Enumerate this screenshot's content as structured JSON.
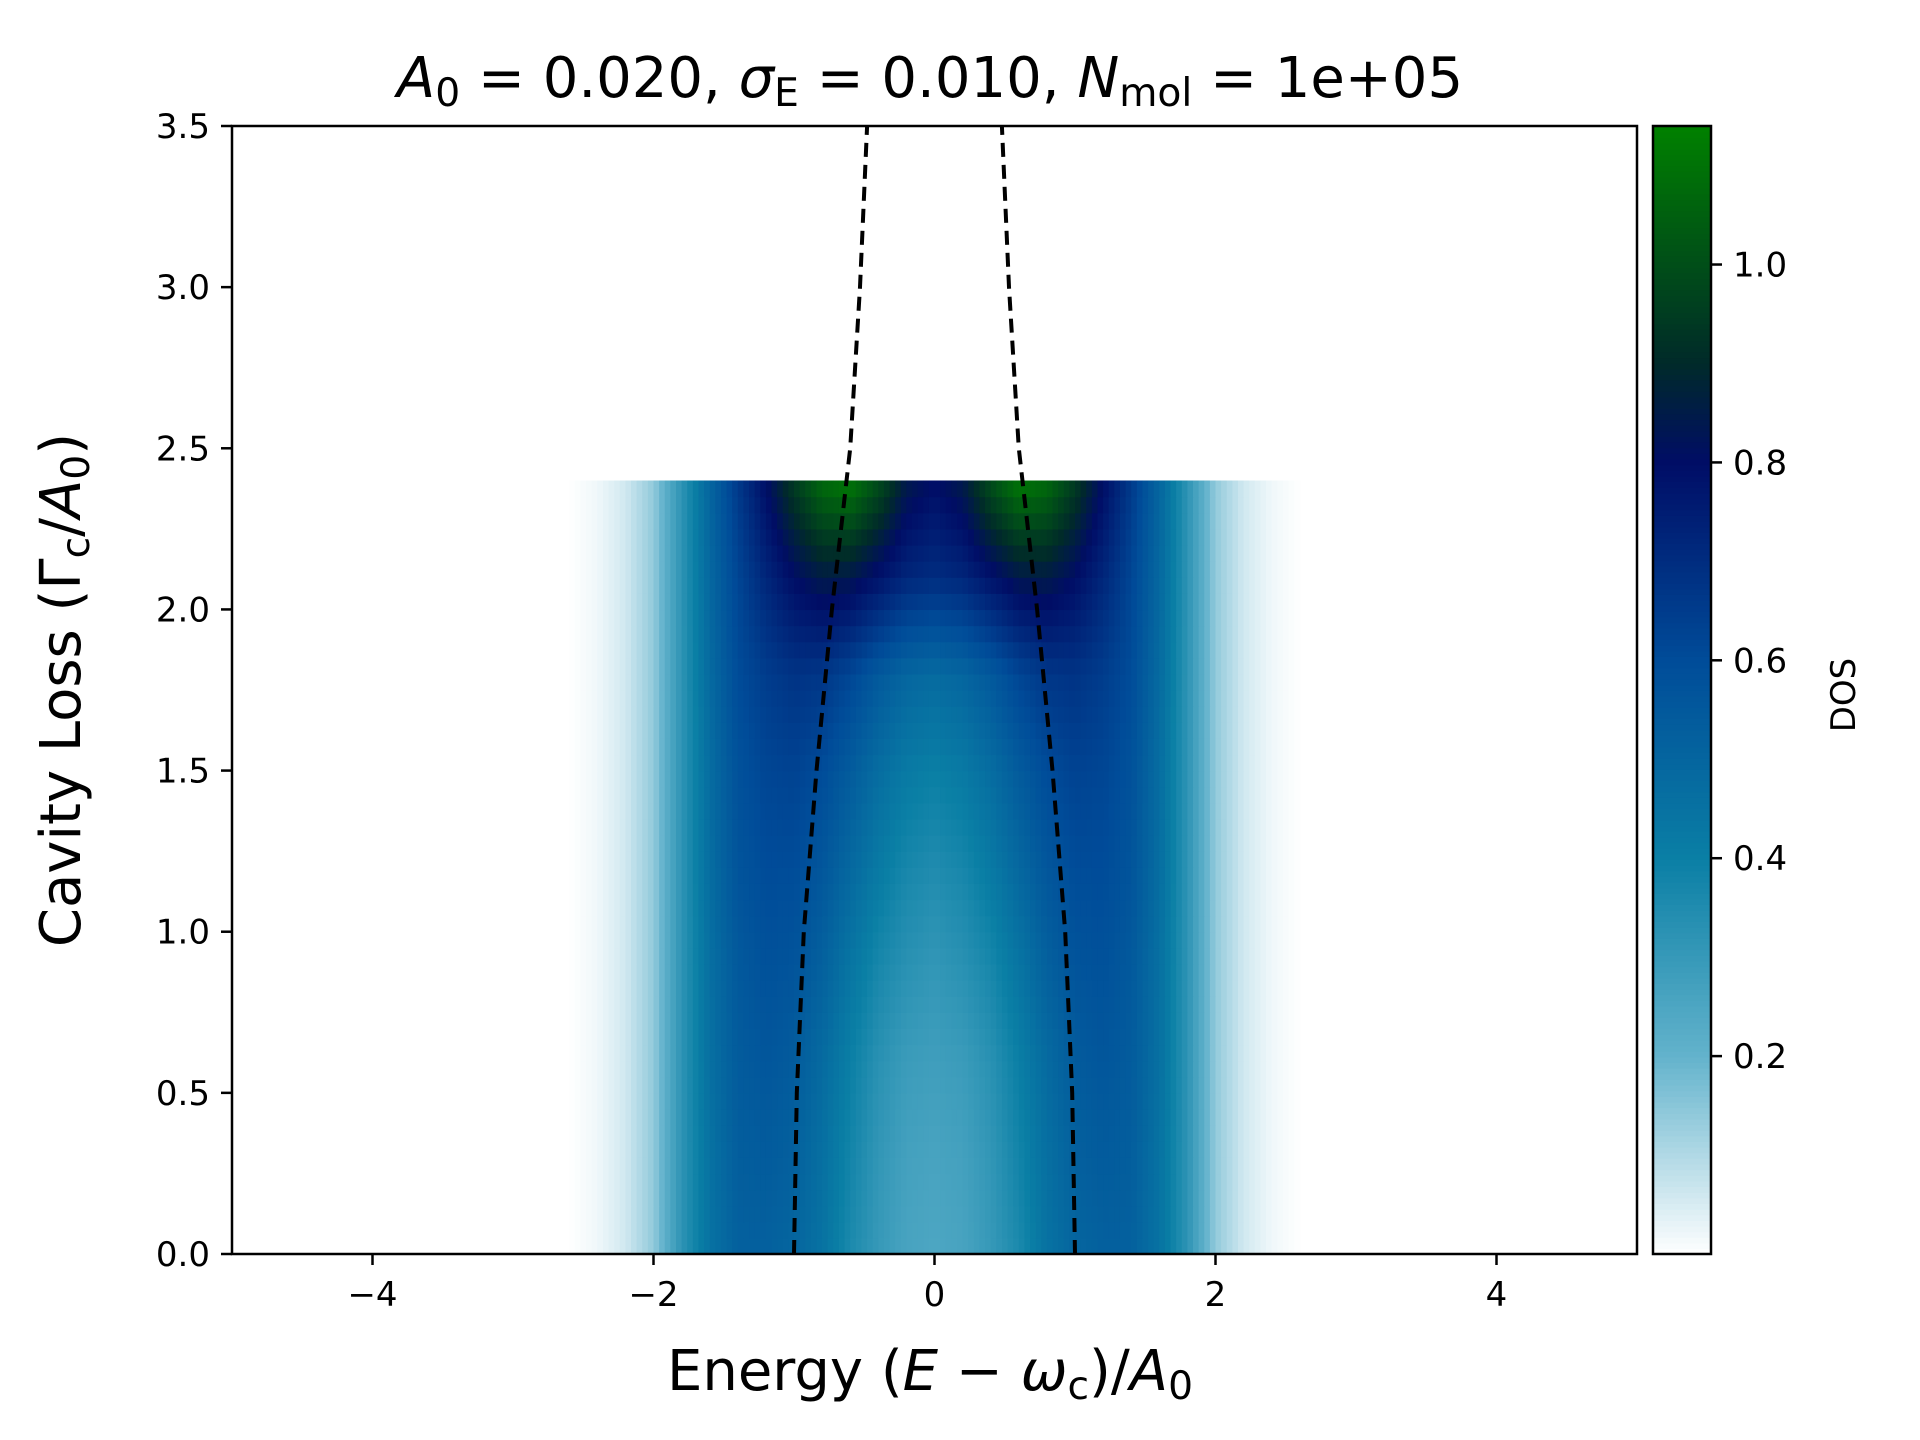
{
  "chart_data": {
    "type": "heatmap",
    "title": {
      "parts": [
        {
          "t": "A",
          "style": "italic"
        },
        {
          "t": "0",
          "style": "sub"
        },
        {
          "t": " = 0.020, ",
          "style": "normal"
        },
        {
          "t": "σ",
          "style": "italic"
        },
        {
          "t": "E",
          "style": "sub"
        },
        {
          "t": " = 0.010,  ",
          "style": "normal"
        },
        {
          "t": "N",
          "style": "italic"
        },
        {
          "t": "mol",
          "style": "sub"
        },
        {
          "t": " = 1e+05",
          "style": "normal"
        }
      ]
    },
    "xlabel": {
      "parts": [
        {
          "t": "Energy (",
          "style": "normal"
        },
        {
          "t": "E",
          "style": "italic"
        },
        {
          "t": " − ",
          "style": "normal"
        },
        {
          "t": "ω",
          "style": "italic"
        },
        {
          "t": "c",
          "style": "sub"
        },
        {
          "t": ")/",
          "style": "normal"
        },
        {
          "t": "A",
          "style": "italic"
        },
        {
          "t": "0",
          "style": "sub"
        }
      ]
    },
    "ylabel": {
      "parts": [
        {
          "t": "Cavity Loss (Γ",
          "style": "normal"
        },
        {
          "t": "c",
          "style": "sub"
        },
        {
          "t": "/",
          "style": "normal"
        },
        {
          "t": "A",
          "style": "italic"
        },
        {
          "t": "0",
          "style": "sub"
        },
        {
          "t": ")",
          "style": "normal"
        }
      ]
    },
    "xlim": [
      -5,
      5
    ],
    "ylim": [
      0,
      3.5
    ],
    "xticks": [
      {
        "value": -4,
        "label": "−4"
      },
      {
        "value": -2,
        "label": "−2"
      },
      {
        "value": 0,
        "label": "0"
      },
      {
        "value": 2,
        "label": "2"
      },
      {
        "value": 4,
        "label": "4"
      }
    ],
    "yticks": [
      {
        "value": 0.0,
        "label": "0.0"
      },
      {
        "value": 0.5,
        "label": "0.5"
      },
      {
        "value": 1.0,
        "label": "1.0"
      },
      {
        "value": 1.5,
        "label": "1.5"
      },
      {
        "value": 2.0,
        "label": "2.0"
      },
      {
        "value": 2.5,
        "label": "2.5"
      },
      {
        "value": 3.0,
        "label": "3.0"
      },
      {
        "value": 3.5,
        "label": "3.5"
      }
    ],
    "heatmap": {
      "x_extent": [
        -2.6,
        2.6
      ],
      "y_extent": [
        0,
        2.4
      ],
      "grid_x": [
        -2.6,
        -2.4,
        -2.2,
        -2.0,
        -1.8,
        -1.6,
        -1.4,
        -1.2,
        -1.0,
        -0.8,
        -0.6,
        -0.4,
        -0.2,
        0.0,
        0.2,
        0.4,
        0.6,
        0.8,
        1.0,
        1.2,
        1.4,
        1.6,
        1.8,
        2.0,
        2.2,
        2.4,
        2.6
      ],
      "grid_y": [
        0.0,
        0.3,
        0.6,
        0.9,
        1.2,
        1.5,
        1.8,
        2.1,
        2.4
      ],
      "values": [
        [
          0.0,
          0.02,
          0.06,
          0.14,
          0.32,
          0.45,
          0.52,
          0.52,
          0.5,
          0.45,
          0.36,
          0.3,
          0.26,
          0.25,
          0.26,
          0.3,
          0.36,
          0.45,
          0.5,
          0.52,
          0.52,
          0.45,
          0.32,
          0.14,
          0.06,
          0.02,
          0.0
        ],
        [
          0.0,
          0.02,
          0.06,
          0.14,
          0.32,
          0.45,
          0.53,
          0.54,
          0.52,
          0.46,
          0.38,
          0.31,
          0.27,
          0.26,
          0.27,
          0.31,
          0.38,
          0.46,
          0.52,
          0.54,
          0.53,
          0.45,
          0.32,
          0.14,
          0.06,
          0.02,
          0.0
        ],
        [
          0.0,
          0.02,
          0.06,
          0.14,
          0.32,
          0.46,
          0.54,
          0.56,
          0.54,
          0.48,
          0.4,
          0.33,
          0.29,
          0.28,
          0.29,
          0.33,
          0.4,
          0.48,
          0.54,
          0.56,
          0.54,
          0.46,
          0.32,
          0.14,
          0.06,
          0.02,
          0.0
        ],
        [
          0.0,
          0.02,
          0.06,
          0.14,
          0.32,
          0.46,
          0.55,
          0.58,
          0.57,
          0.52,
          0.44,
          0.37,
          0.33,
          0.31,
          0.33,
          0.37,
          0.44,
          0.52,
          0.57,
          0.58,
          0.55,
          0.46,
          0.32,
          0.14,
          0.06,
          0.02,
          0.0
        ],
        [
          0.0,
          0.02,
          0.06,
          0.14,
          0.32,
          0.47,
          0.57,
          0.6,
          0.6,
          0.56,
          0.49,
          0.42,
          0.37,
          0.35,
          0.37,
          0.42,
          0.49,
          0.56,
          0.6,
          0.6,
          0.57,
          0.47,
          0.32,
          0.14,
          0.06,
          0.02,
          0.0
        ],
        [
          0.0,
          0.02,
          0.06,
          0.14,
          0.32,
          0.47,
          0.58,
          0.62,
          0.63,
          0.6,
          0.54,
          0.47,
          0.42,
          0.4,
          0.42,
          0.47,
          0.54,
          0.6,
          0.63,
          0.62,
          0.58,
          0.47,
          0.32,
          0.14,
          0.06,
          0.02,
          0.0
        ],
        [
          0.0,
          0.02,
          0.06,
          0.14,
          0.32,
          0.48,
          0.6,
          0.65,
          0.68,
          0.67,
          0.62,
          0.55,
          0.5,
          0.48,
          0.5,
          0.55,
          0.62,
          0.67,
          0.68,
          0.65,
          0.6,
          0.48,
          0.32,
          0.14,
          0.06,
          0.02,
          0.0
        ],
        [
          0.0,
          0.02,
          0.06,
          0.14,
          0.32,
          0.49,
          0.62,
          0.72,
          0.8,
          0.85,
          0.84,
          0.78,
          0.72,
          0.7,
          0.72,
          0.78,
          0.84,
          0.85,
          0.8,
          0.72,
          0.62,
          0.49,
          0.32,
          0.14,
          0.06,
          0.02,
          0.0
        ],
        [
          0.0,
          0.02,
          0.06,
          0.14,
          0.32,
          0.5,
          0.66,
          0.8,
          0.95,
          1.08,
          1.12,
          1.0,
          0.85,
          0.8,
          0.85,
          1.0,
          1.12,
          1.08,
          0.95,
          0.8,
          0.66,
          0.5,
          0.32,
          0.14,
          0.06,
          0.02,
          0.0
        ]
      ]
    },
    "series": [
      {
        "style": "dashed",
        "color": "#000000",
        "x": [
          -1.0,
          -0.98,
          -0.93,
          -0.84,
          -0.73,
          -0.6,
          -0.53,
          -0.48
        ],
        "y": [
          0.0,
          0.5,
          1.0,
          1.5,
          2.0,
          2.5,
          3.0,
          3.5
        ]
      },
      {
        "style": "dashed",
        "color": "#000000",
        "x": [
          1.0,
          0.98,
          0.93,
          0.84,
          0.73,
          0.6,
          0.53,
          0.48
        ],
        "y": [
          0.0,
          0.5,
          1.0,
          1.5,
          2.0,
          2.5,
          3.0,
          3.5
        ]
      }
    ],
    "colorbar": {
      "label": "DOS",
      "colormap": "ocean_r",
      "range": [
        0.0,
        1.14
      ],
      "ticks": [
        {
          "value": 0.2,
          "label": "0.2"
        },
        {
          "value": 0.4,
          "label": "0.4"
        },
        {
          "value": 0.6,
          "label": "0.6"
        },
        {
          "value": 0.8,
          "label": "0.8"
        },
        {
          "value": 1.0,
          "label": "1.0"
        }
      ],
      "stops": [
        {
          "v": 0.0,
          "color": "#ffffff"
        },
        {
          "v": 0.2,
          "color": "#63b3cc"
        },
        {
          "v": 0.4,
          "color": "#0a7fa5"
        },
        {
          "v": 0.6,
          "color": "#004c99"
        },
        {
          "v": 0.8,
          "color": "#000d66"
        },
        {
          "v": 0.9,
          "color": "#002a2a"
        },
        {
          "v": 1.14,
          "color": "#008000"
        }
      ]
    },
    "grid": false,
    "legend": "none"
  }
}
